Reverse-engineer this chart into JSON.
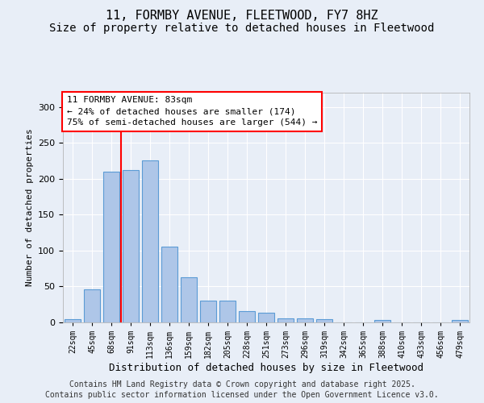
{
  "title_line1": "11, FORMBY AVENUE, FLEETWOOD, FY7 8HZ",
  "title_line2": "Size of property relative to detached houses in Fleetwood",
  "xlabel": "Distribution of detached houses by size in Fleetwood",
  "ylabel": "Number of detached properties",
  "categories": [
    "22sqm",
    "45sqm",
    "68sqm",
    "91sqm",
    "113sqm",
    "136sqm",
    "159sqm",
    "182sqm",
    "205sqm",
    "228sqm",
    "251sqm",
    "273sqm",
    "296sqm",
    "319sqm",
    "342sqm",
    "365sqm",
    "388sqm",
    "410sqm",
    "433sqm",
    "456sqm",
    "479sqm"
  ],
  "values": [
    5,
    46,
    210,
    212,
    226,
    106,
    63,
    30,
    30,
    16,
    13,
    6,
    6,
    4,
    0,
    0,
    3,
    0,
    0,
    0,
    3
  ],
  "bar_color": "#aec6e8",
  "bar_edge_color": "#5b9bd5",
  "annotation_text": "11 FORMBY AVENUE: 83sqm\n← 24% of detached houses are smaller (174)\n75% of semi-detached houses are larger (544) →",
  "annotation_box_color": "white",
  "annotation_box_edge_color": "red",
  "vline_x_index": 2.5,
  "vline_color": "red",
  "ylim": [
    0,
    320
  ],
  "yticks": [
    0,
    50,
    100,
    150,
    200,
    250,
    300
  ],
  "bg_color": "#e8eef7",
  "footer_line1": "Contains HM Land Registry data © Crown copyright and database right 2025.",
  "footer_line2": "Contains public sector information licensed under the Open Government Licence v3.0.",
  "title_fontsize": 11,
  "subtitle_fontsize": 10,
  "annotation_fontsize": 8,
  "footer_fontsize": 7
}
